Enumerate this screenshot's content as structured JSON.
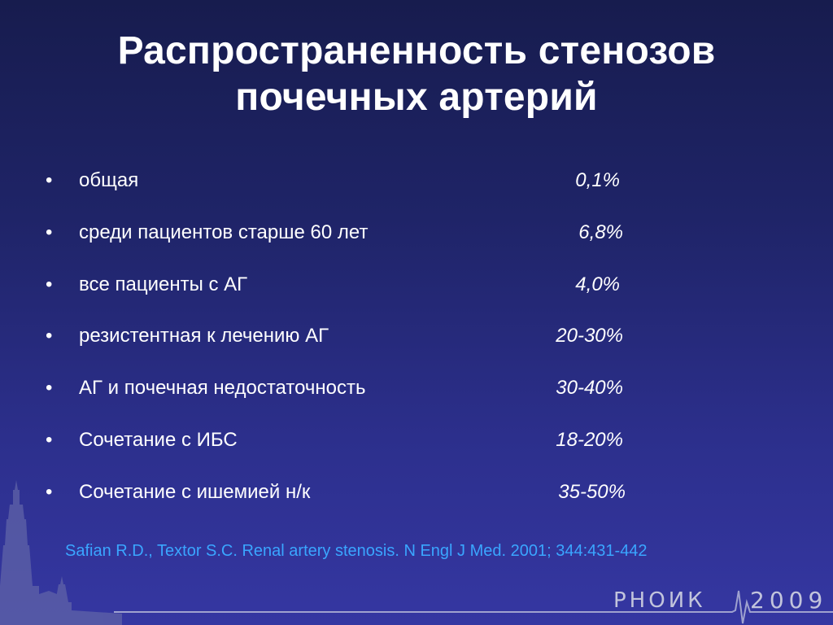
{
  "slide": {
    "title_lines": [
      "Распространенность стенозов",
      "почечных артерий"
    ],
    "bullet_symbol": "•",
    "items": [
      {
        "label": "общая",
        "value": "0,1%"
      },
      {
        "label": "среди пациентов старше 60 лет",
        "value": "6,8%"
      },
      {
        "label": "все пациенты с АГ",
        "value": "4,0%"
      },
      {
        "label": "резистентная к лечению АГ",
        "value": "20-30%"
      },
      {
        "label": "АГ и почечная недостаточность",
        "value": "30-40%"
      },
      {
        "label": "Сочетание с ИБС",
        "value": "18-20%"
      },
      {
        "label": "Сочетание с ишемией н/к",
        "value": "35-50%"
      }
    ],
    "reference": "Safian R.D., Textor S.C. Renal artery stenosis. N Engl J Med. 2001; 344:431-442"
  },
  "logo": {
    "name": "РНОИК",
    "year": "2009"
  },
  "colors": {
    "background_top": "#171c4e",
    "background_bottom": "#3537a2",
    "text": "#ffffff",
    "reference": "#3aa6ff",
    "logo": "#c2c4dc"
  }
}
